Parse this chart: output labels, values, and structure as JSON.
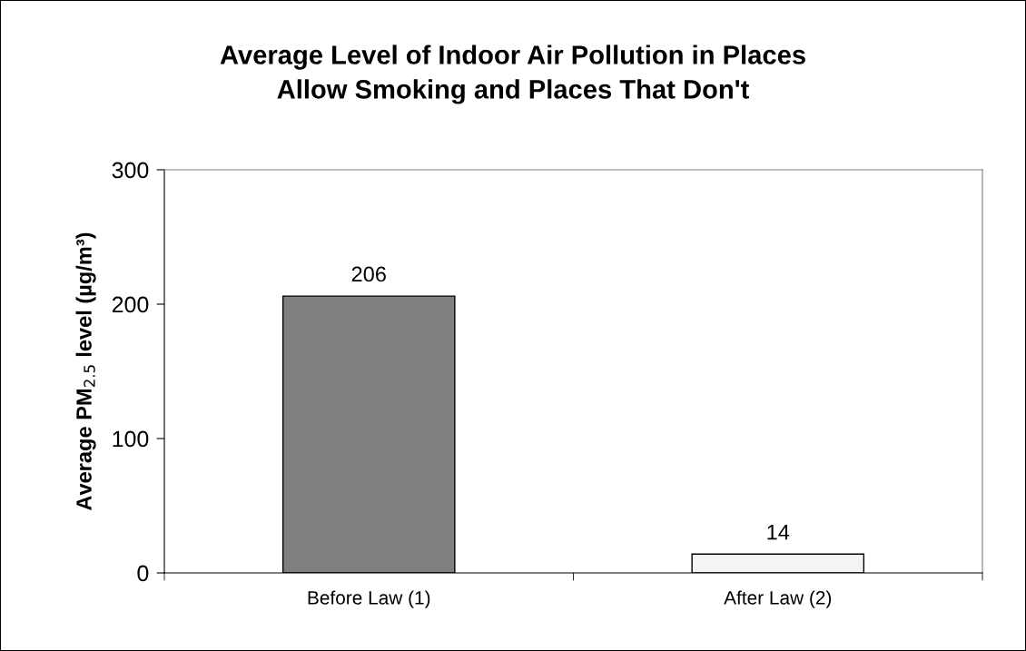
{
  "chart_data": {
    "type": "bar",
    "title": "Average Level of Indoor Air Pollution in Places\nAllow Smoking and Places That Don't",
    "ylabel": "Average PM$_{2.5}$ level (µg/m³)",
    "categories": [
      "Before Law (1)",
      "After Law (2)"
    ],
    "values": [
      206,
      14
    ],
    "colors": [
      "#808080",
      "#f4f4f4"
    ],
    "ylim": [
      0,
      300
    ],
    "yticks": [
      0,
      100,
      200,
      300
    ],
    "data_labels": true,
    "grid": false
  }
}
